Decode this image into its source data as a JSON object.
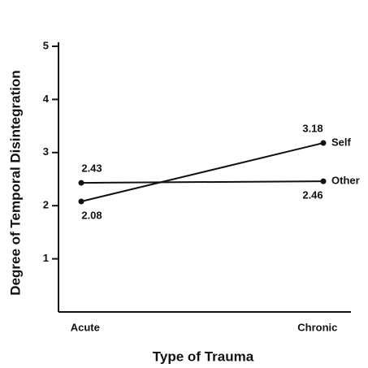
{
  "chart_data": {
    "type": "line",
    "xlabel": "Type of Trauma",
    "ylabel": "Degree of Temporal Disintegration",
    "categories": [
      "Acute",
      "Chronic"
    ],
    "series": [
      {
        "name": "Self",
        "color": "#111111",
        "values": [
          2.08,
          3.18
        ]
      },
      {
        "name": "Other",
        "color": "#111111",
        "values": [
          2.43,
          2.46
        ]
      }
    ],
    "ylim": [
      0,
      5
    ],
    "yticks": [
      1,
      2,
      3,
      4,
      5
    ]
  }
}
